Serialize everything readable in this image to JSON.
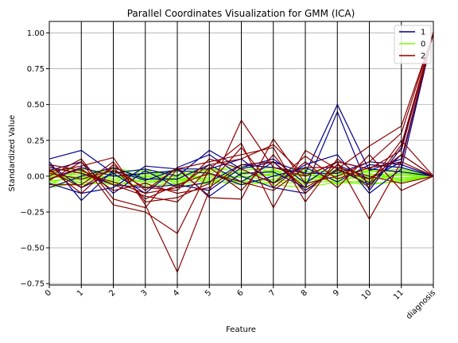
{
  "chart_data": {
    "type": "line",
    "title": "Parallel Coordinates Visualization for GMM (ICA)",
    "xlabel": "Feature",
    "ylabel": "Standardized Value",
    "categories": [
      "0",
      "1",
      "2",
      "3",
      "4",
      "5",
      "6",
      "7",
      "8",
      "9",
      "10",
      "11",
      "diagnosis"
    ],
    "ylim": [
      -0.76,
      1.08
    ],
    "yticks": [
      1.0,
      0.75,
      0.5,
      0.25,
      0.0,
      -0.25,
      -0.5,
      -0.75
    ],
    "ytick_labels": [
      "1.00",
      "0.75",
      "0.50",
      "0.25",
      "0.00",
      "−0.25",
      "−0.50",
      "−0.75"
    ],
    "grid": true,
    "legend": {
      "placement": "top-right",
      "entries": [
        {
          "label": "1",
          "color": "#00008b"
        },
        {
          "label": "0",
          "color": "#7cfc00"
        },
        {
          "label": "2",
          "color": "#8b0000"
        }
      ]
    },
    "series": [
      {
        "cls": "0",
        "color": "#7cfc00",
        "values": [
          -0.03,
          -0.02,
          0.0,
          -0.04,
          -0.01,
          -0.02,
          0.0,
          -0.03,
          -0.03,
          -0.01,
          -0.02,
          -0.01,
          0.0
        ]
      },
      {
        "cls": "0",
        "color": "#7cfc00",
        "values": [
          0.02,
          0.01,
          0.03,
          -0.02,
          0.0,
          0.03,
          0.02,
          0.01,
          0.0,
          0.02,
          0.01,
          0.02,
          0.0
        ]
      },
      {
        "cls": "0",
        "color": "#7cfc00",
        "values": [
          -0.05,
          -0.06,
          -0.04,
          -0.07,
          -0.05,
          -0.03,
          -0.06,
          -0.04,
          -0.05,
          -0.03,
          -0.05,
          -0.04,
          0.0
        ]
      },
      {
        "cls": "0",
        "color": "#7cfc00",
        "values": [
          0.04,
          0.05,
          0.02,
          0.01,
          0.03,
          0.05,
          0.04,
          0.06,
          0.03,
          0.04,
          0.03,
          0.05,
          0.0
        ]
      },
      {
        "cls": "0",
        "color": "#7cfc00",
        "values": [
          -0.01,
          0.03,
          -0.02,
          0.02,
          -0.03,
          0.01,
          -0.01,
          0.02,
          0.01,
          -0.02,
          0.0,
          0.01,
          0.0
        ]
      },
      {
        "cls": "0",
        "color": "#7cfc00",
        "values": [
          -0.08,
          -0.04,
          -0.06,
          -0.02,
          -0.07,
          -0.05,
          -0.03,
          -0.06,
          -0.08,
          -0.04,
          -0.06,
          -0.03,
          0.0
        ]
      },
      {
        "cls": "0",
        "color": "#7cfc00",
        "values": [
          0.06,
          0.02,
          0.05,
          0.03,
          0.01,
          0.04,
          0.07,
          0.03,
          0.05,
          0.02,
          0.04,
          0.03,
          0.0
        ]
      },
      {
        "cls": "0",
        "color": "#7cfc00",
        "values": [
          0.0,
          -0.03,
          0.01,
          -0.05,
          -0.02,
          -0.01,
          0.03,
          0.0,
          -0.02,
          0.01,
          -0.01,
          -0.02,
          0.0
        ]
      },
      {
        "cls": "0",
        "color": "#7cfc00",
        "values": [
          -0.04,
          0.0,
          -0.03,
          0.0,
          -0.04,
          0.02,
          -0.05,
          -0.02,
          0.02,
          -0.05,
          -0.03,
          0.02,
          0.0
        ]
      },
      {
        "cls": "0",
        "color": "#7cfc00",
        "values": [
          0.03,
          -0.05,
          0.04,
          -0.03,
          0.04,
          -0.04,
          0.01,
          0.04,
          -0.04,
          0.05,
          0.02,
          -0.03,
          0.0
        ]
      },
      {
        "cls": "0",
        "color": "#7cfc00",
        "values": [
          -0.06,
          0.04,
          -0.05,
          0.05,
          -0.06,
          0.06,
          -0.04,
          0.05,
          -0.06,
          0.03,
          -0.04,
          0.04,
          0.0
        ]
      },
      {
        "cls": "0",
        "color": "#7cfc00",
        "values": [
          0.01,
          -0.01,
          0.06,
          -0.01,
          0.05,
          -0.06,
          0.05,
          -0.05,
          0.04,
          -0.06,
          0.05,
          -0.05,
          0.0
        ]
      },
      {
        "cls": "1",
        "color": "#00008b",
        "values": [
          0.12,
          0.18,
          0.02,
          0.05,
          0.0,
          0.18,
          0.05,
          0.1,
          0.02,
          0.5,
          0.04,
          0.12,
          1.0
        ]
      },
      {
        "cls": "1",
        "color": "#00008b",
        "values": [
          0.1,
          -0.17,
          0.04,
          -0.03,
          0.05,
          -0.14,
          0.02,
          0.03,
          -0.08,
          0.45,
          -0.1,
          0.2,
          1.0
        ]
      },
      {
        "cls": "1",
        "color": "#00008b",
        "values": [
          -0.05,
          -0.12,
          -0.08,
          0.07,
          0.05,
          0.05,
          0.12,
          -0.05,
          0.08,
          0.15,
          -0.12,
          0.05,
          1.0
        ]
      },
      {
        "cls": "1",
        "color": "#00008b",
        "values": [
          0.06,
          0.02,
          -0.06,
          -0.08,
          -0.06,
          -0.1,
          0.06,
          0.12,
          -0.05,
          0.1,
          0.05,
          0.03,
          0.0
        ]
      },
      {
        "cls": "1",
        "color": "#00008b",
        "values": [
          -0.02,
          0.06,
          0.0,
          0.02,
          0.04,
          0.02,
          -0.06,
          0.0,
          0.06,
          -0.04,
          0.08,
          0.06,
          0.0
        ]
      },
      {
        "cls": "1",
        "color": "#00008b",
        "values": [
          0.08,
          -0.08,
          0.02,
          -0.12,
          0.06,
          0.15,
          0.0,
          -0.08,
          -0.12,
          0.08,
          -0.02,
          0.1,
          1.0
        ]
      },
      {
        "cls": "1",
        "color": "#00008b",
        "values": [
          0.04,
          0.1,
          -0.12,
          0.04,
          -0.08,
          -0.04,
          0.08,
          0.06,
          0.02,
          0.02,
          0.1,
          0.08,
          0.0
        ]
      },
      {
        "cls": "1",
        "color": "#00008b",
        "values": [
          -0.08,
          0.0,
          0.06,
          -0.02,
          -0.02,
          0.08,
          -0.04,
          0.1,
          -0.1,
          0.05,
          -0.06,
          0.15,
          0.0
        ]
      },
      {
        "cls": "2",
        "color": "#8b0000",
        "values": [
          0.03,
          0.07,
          0.13,
          -0.2,
          -0.67,
          -0.1,
          0.39,
          0.06,
          0.0,
          0.1,
          -0.3,
          0.1,
          1.0
        ]
      },
      {
        "cls": "2",
        "color": "#8b0000",
        "values": [
          -0.03,
          0.1,
          -0.2,
          -0.25,
          -0.4,
          0.05,
          0.23,
          -0.22,
          0.18,
          0.05,
          0.21,
          0.35,
          1.0
        ]
      },
      {
        "cls": "2",
        "color": "#8b0000",
        "values": [
          0.05,
          -0.12,
          0.08,
          -0.1,
          0.06,
          -0.15,
          -0.16,
          0.26,
          -0.05,
          0.0,
          0.1,
          0.3,
          1.0
        ]
      },
      {
        "cls": "2",
        "color": "#8b0000",
        "values": [
          0.0,
          0.12,
          -0.16,
          -0.22,
          0.05,
          0.1,
          0.15,
          0.2,
          -0.18,
          0.12,
          -0.05,
          0.25,
          0.0
        ]
      },
      {
        "cls": "2",
        "color": "#8b0000",
        "values": [
          -0.06,
          -0.06,
          0.1,
          -0.18,
          -0.15,
          -0.05,
          0.2,
          -0.08,
          0.1,
          -0.08,
          0.15,
          -0.1,
          0.0
        ]
      },
      {
        "cls": "2",
        "color": "#8b0000",
        "values": [
          0.08,
          0.04,
          -0.06,
          -0.14,
          -0.18,
          0.06,
          -0.1,
          0.15,
          -0.12,
          0.08,
          -0.08,
          0.22,
          1.0
        ]
      },
      {
        "cls": "2",
        "color": "#8b0000",
        "values": [
          0.02,
          -0.02,
          0.04,
          -0.08,
          -0.1,
          0.12,
          0.05,
          -0.05,
          0.14,
          -0.02,
          0.06,
          0.1,
          0.0
        ]
      },
      {
        "cls": "2",
        "color": "#8b0000",
        "values": [
          -0.02,
          0.05,
          -0.1,
          -0.05,
          -0.12,
          -0.08,
          0.08,
          0.1,
          -0.08,
          0.04,
          -0.02,
          0.15,
          0.0
        ]
      },
      {
        "cls": "2",
        "color": "#8b0000",
        "values": [
          0.04,
          -0.08,
          0.06,
          -0.16,
          -0.06,
          0.02,
          -0.04,
          -0.1,
          0.06,
          0.06,
          0.0,
          -0.05,
          0.0
        ]
      },
      {
        "cls": "2",
        "color": "#8b0000",
        "values": [
          0.06,
          0.02,
          -0.04,
          -0.12,
          -0.08,
          0.08,
          0.12,
          0.22,
          0.0,
          0.1,
          0.05,
          0.18,
          1.0
        ]
      }
    ]
  }
}
